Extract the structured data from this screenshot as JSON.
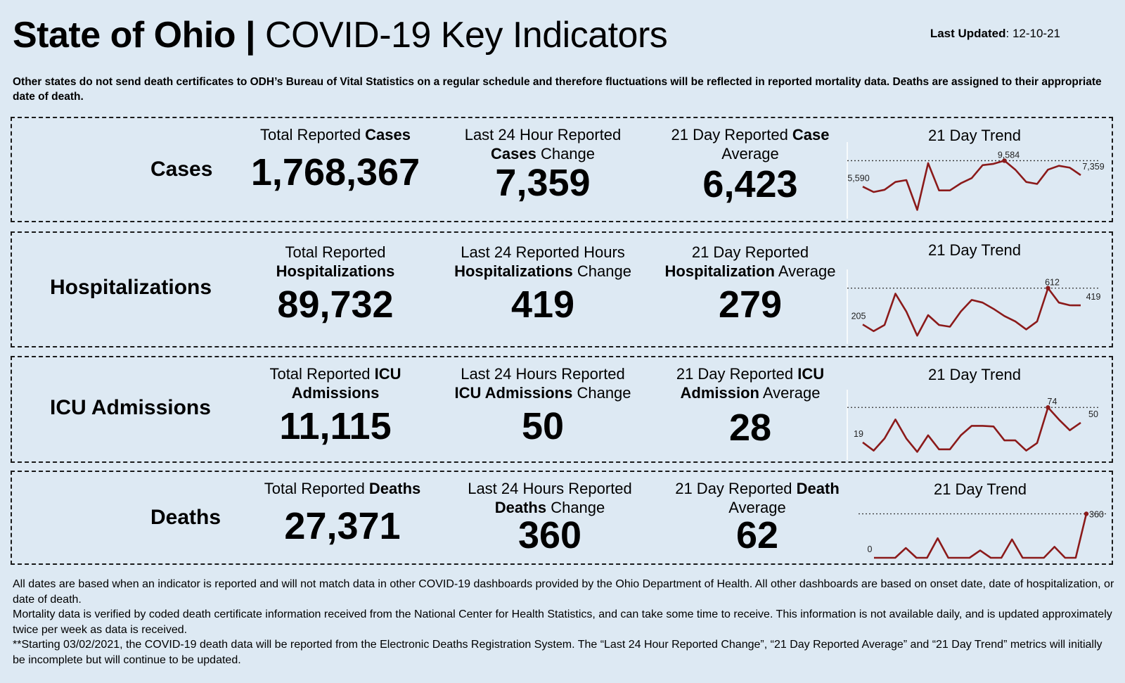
{
  "header": {
    "title_bold": "State of Ohio |",
    "title_rest": " COVID-19  Key Indicators",
    "last_updated_label": "Last Updated",
    "last_updated_value": ": 12-10-21"
  },
  "notice": "Other states do not send death certificates to ODH’s Bureau of Vital Statistics on a regular schedule and therefore fluctuations will be reflected in reported mortality data. Deaths are assigned to their appropriate date of death.",
  "cases": {
    "label": "Cases",
    "total": {
      "pre": "Total Reported ",
      "bold": "Cases",
      "post": "",
      "value": "1,768,367"
    },
    "change": {
      "line1": "Last 24 Hour Reported",
      "bold": "Cases",
      "post": " Change",
      "value": "7,359"
    },
    "avg": {
      "pre": "21 Day Reported ",
      "bold": "Case",
      "line2": "Average",
      "value": "6,423"
    },
    "trend_title": "21 Day Trend"
  },
  "hosp": {
    "label": "Hospitalizations",
    "total": {
      "line1": "Total Reported",
      "bold": "Hospitalizations",
      "value": "89,732"
    },
    "change": {
      "line1": "Last 24 Reported Hours",
      "bold": "Hospitalizations",
      "post": " Change",
      "value": "419"
    },
    "avg": {
      "line1": "21 Day Reported",
      "bold": "Hospitalization",
      "post": " Average",
      "value": "279"
    },
    "trend_title": "21 Day Trend"
  },
  "icu": {
    "label": "ICU Admissions",
    "total": {
      "pre": "Total Reported ",
      "bold": "ICU",
      "bold2": "Admissions",
      "value": "11,115"
    },
    "change": {
      "line1": "Last 24 Hours Reported",
      "bold": "ICU Admissions",
      "post": " Change",
      "value": "50"
    },
    "avg": {
      "pre": "21 Day Reported ",
      "bold": "ICU",
      "bold2": "Admission",
      "post": " Average",
      "value": "28"
    },
    "trend_title": "21 Day Trend"
  },
  "deaths": {
    "label": "Deaths",
    "total": {
      "pre": "Total Reported ",
      "bold": "Deaths",
      "value": "27,371"
    },
    "change": {
      "line1": "Last 24 Hours Reported",
      "bold": "Deaths",
      "post": " Change",
      "value": "360"
    },
    "avg": {
      "pre": "21 Day Reported ",
      "bold": "Death",
      "line2": "Average",
      "value": "62"
    },
    "trend_title": "21 Day Trend"
  },
  "chart_data": [
    {
      "type": "line",
      "title": "21 Day Trend",
      "series": [
        {
          "values": [
            5590,
            4750,
            5100,
            6300,
            6600,
            2000,
            9200,
            5000,
            5000,
            6100,
            6900,
            8900,
            9100,
            9584,
            8200,
            6300,
            6000,
            8200,
            8800,
            8500,
            7359
          ]
        }
      ],
      "annotations": [
        "5,590",
        "9,584",
        "7,359"
      ],
      "start_label": "5,590",
      "max_label": "9,584",
      "end_label": "7,359",
      "max_index": 13,
      "ylim": [
        1500,
        10500
      ],
      "color": "#8b1a1a"
    },
    {
      "type": "line",
      "title": "21 Day Trend",
      "series": [
        {
          "values": [
            205,
            130,
            200,
            550,
            350,
            80,
            310,
            200,
            180,
            350,
            480,
            450,
            380,
            300,
            240,
            150,
            240,
            612,
            450,
            420,
            419
          ]
        }
      ],
      "annotations": [
        "205",
        "612",
        "419"
      ],
      "start_label": "205",
      "max_label": "612",
      "end_label": "419",
      "max_index": 17,
      "ylim": [
        50,
        680
      ],
      "color": "#8b1a1a"
    },
    {
      "type": "line",
      "title": "21 Day Trend",
      "series": [
        {
          "values": [
            19,
            6,
            25,
            55,
            25,
            4,
            30,
            8,
            8,
            30,
            45,
            45,
            44,
            22,
            22,
            6,
            18,
            74,
            55,
            38,
            50
          ]
        }
      ],
      "annotations": [
        "19",
        "74",
        "50"
      ],
      "start_label": "19",
      "max_label": "74",
      "end_label": "50",
      "max_index": 17,
      "ylim": [
        0,
        82
      ],
      "color": "#8b1a1a"
    },
    {
      "type": "line",
      "title": "21 Day Trend",
      "series": [
        {
          "values": [
            0,
            0,
            0,
            80,
            0,
            0,
            160,
            0,
            0,
            0,
            60,
            0,
            0,
            150,
            0,
            0,
            0,
            90,
            0,
            0,
            360
          ]
        }
      ],
      "annotations": [
        "0",
        "360"
      ],
      "start_label": "0",
      "max_label": "360",
      "end_label": "",
      "max_index": 20,
      "ylim": [
        0,
        380
      ],
      "color": "#8b1a1a"
    }
  ],
  "footer": {
    "p1": "All dates are based when an indicator is reported and will not match data in other COVID-19 dashboards provided by the Ohio Department of Health. All other dashboards are based on onset date, date of hospitalization, or date of death.",
    "p2": "Mortality data is verified by coded death certificate information received from the National Center for Health Statistics, and can take some time to receive. This information is not available daily, and is updated approximately twice per week as data is received.",
    "p3": "**Starting 03/02/2021, the COVID-19 death data will be reported from the Electronic Deaths Registration System. The “Last 24 Hour Reported Change”, “21 Day Reported Average” and “21 Day Trend” metrics will initially be incomplete but will continue to be updated."
  }
}
